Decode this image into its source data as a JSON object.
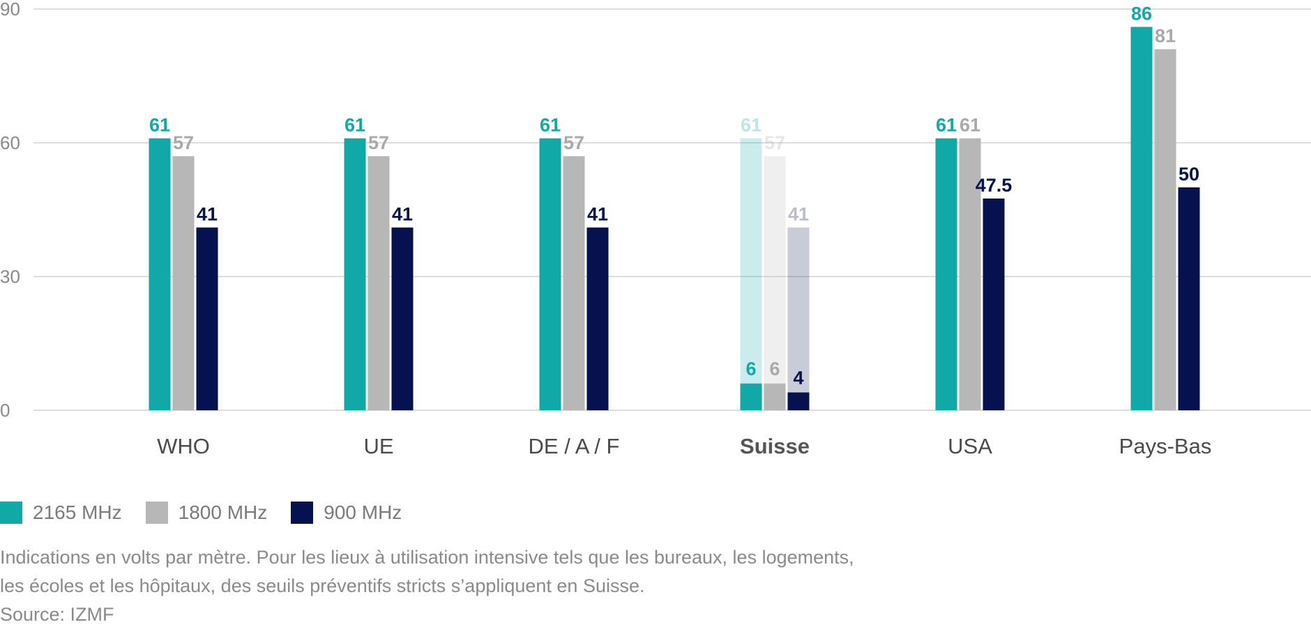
{
  "chart_data": {
    "type": "bar",
    "categories": [
      "WHO",
      "UE",
      "DE / A / F",
      "Suisse",
      "USA",
      "Pays-Bas"
    ],
    "highlighted_category": "Suisse",
    "series": [
      {
        "name": "2165 MHz",
        "color": "#11a8a8",
        "values": [
          61,
          61,
          61,
          61,
          61,
          86
        ],
        "value_labels": [
          "61",
          "61",
          "61",
          "61",
          "61",
          "86"
        ]
      },
      {
        "name": "1800 MHz",
        "color": "#b7b7b7",
        "values": [
          57,
          57,
          57,
          57,
          61,
          81
        ],
        "value_labels": [
          "57",
          "57",
          "57",
          "57",
          "61",
          "81"
        ]
      },
      {
        "name": "900 MHz",
        "color": "#06124f",
        "values": [
          41,
          41,
          41,
          41,
          47.5,
          50
        ],
        "value_labels": [
          "41",
          "41",
          "41",
          "41",
          "47.5",
          "50"
        ]
      }
    ],
    "overlay": {
      "category": "Suisse",
      "description": "strict preventive thresholds shown as solid bars over faded international limits",
      "values": [
        6,
        6,
        4
      ],
      "value_labels": [
        "6",
        "6",
        "4"
      ]
    },
    "ylim": [
      0,
      90
    ],
    "yticks": [
      0,
      30,
      60,
      90
    ],
    "grid": true,
    "legend_position": "bottom-left",
    "xlabel": "",
    "ylabel": ""
  },
  "notes": [
    "Indications en volts par mètre. Pour les lieux à utilisation intensive tels que les bureaux, les logements,",
    "les écoles et les hôpitaux, des seuils préventifs stricts s’appliquent en Suisse.",
    "Source: IZMF"
  ]
}
